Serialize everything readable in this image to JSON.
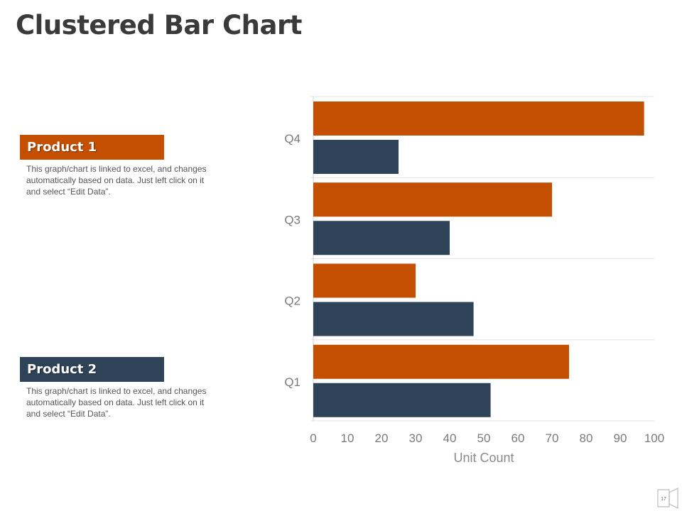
{
  "page": {
    "title": "Clustered Bar Chart",
    "page_number": "17"
  },
  "legend": [
    {
      "label": "Product 1",
      "description": "This graph/chart is linked to excel, and changes automatically based on data. Just left click on it and select “Edit Data”.",
      "color": "#c44f00"
    },
    {
      "label": "Product 2",
      "description": "This graph/chart is linked to excel, and changes automatically based on data. Just left click on it and select “Edit Data”.",
      "color": "#2f4358"
    }
  ],
  "chart_data": {
    "type": "bar",
    "orientation": "horizontal",
    "categories": [
      "Q1",
      "Q2",
      "Q3",
      "Q4"
    ],
    "series": [
      {
        "name": "Product 1",
        "values": [
          75,
          30,
          70,
          97
        ],
        "color": "#c44f00"
      },
      {
        "name": "Product 2",
        "values": [
          52,
          47,
          40,
          25
        ],
        "color": "#2f4358"
      }
    ],
    "xlabel": "Unit Count",
    "ylabel": "",
    "xlim": [
      0,
      100
    ],
    "xticks": [
      0,
      10,
      20,
      30,
      40,
      50,
      60,
      70,
      80,
      90,
      100
    ],
    "grid": true
  }
}
